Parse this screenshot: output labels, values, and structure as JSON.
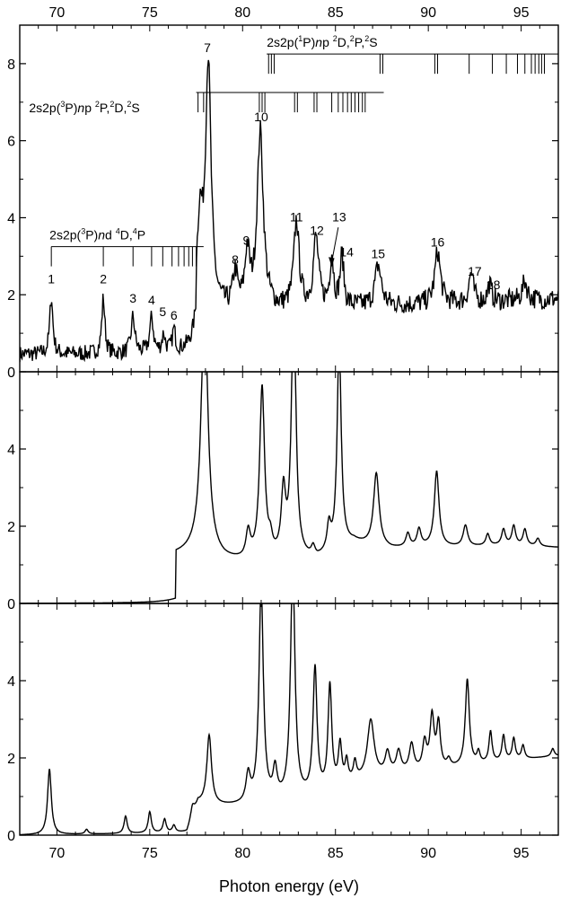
{
  "chart_data": {
    "type": "line",
    "xlabel": "Photon energy (eV)",
    "xlim": [
      68,
      97
    ],
    "x_ticks": [
      70,
      75,
      80,
      85,
      90,
      95
    ],
    "x_ticks_top": [
      70,
      75,
      80,
      85,
      90,
      95
    ],
    "panels": [
      {
        "id": "experiment",
        "ylim": [
          0,
          9
        ],
        "y_ticks": [
          0,
          2,
          4,
          6,
          8
        ],
        "peak_labels": [
          {
            "text": "1",
            "x": 69.7,
            "y": 2.3
          },
          {
            "text": "2",
            "x": 72.5,
            "y": 2.3
          },
          {
            "text": "3",
            "x": 74.1,
            "y": 1.8
          },
          {
            "text": "4",
            "x": 75.1,
            "y": 1.75
          },
          {
            "text": "5",
            "x": 75.7,
            "y": 1.45
          },
          {
            "text": "6",
            "x": 76.3,
            "y": 1.35
          },
          {
            "text": "7",
            "x": 78.1,
            "y": 8.3
          },
          {
            "text": "8",
            "x": 79.6,
            "y": 2.8
          },
          {
            "text": "9",
            "x": 80.2,
            "y": 3.3
          },
          {
            "text": "10",
            "x": 81.0,
            "y": 6.5
          },
          {
            "text": "11",
            "x": 82.9,
            "y": 3.9
          },
          {
            "text": "12",
            "x": 84.0,
            "y": 3.55
          },
          {
            "text": "13",
            "x": 85.2,
            "y": 3.9
          },
          {
            "text": "14",
            "x": 85.6,
            "y": 3.0
          },
          {
            "text": "15",
            "x": 87.3,
            "y": 2.95
          },
          {
            "text": "16",
            "x": 90.5,
            "y": 3.25
          },
          {
            "text": "17",
            "x": 92.5,
            "y": 2.5
          },
          {
            "text": "18",
            "x": 93.5,
            "y": 2.15
          }
        ],
        "series_3Pnd_4D4P": {
          "label": "2s2p(3P)nd 4D,4P",
          "baseline_y": 3.25,
          "x_start": 69.7,
          "x_end": 77.9,
          "positions": [
            69.7,
            72.5,
            74.1,
            75.1,
            75.7,
            76.2,
            76.55,
            76.85,
            77.1,
            77.3,
            77.5
          ]
        },
        "series_3Pnp_2P2D2S": {
          "label": "2s2p(3P)np 2P,2D,2S",
          "baseline_y": 7.25,
          "x_start": 77.5,
          "x_end": 87.6,
          "positions": [
            77.6,
            77.9,
            78.25,
            80.9,
            81.05,
            81.2,
            82.8,
            82.95,
            83.85,
            84.0,
            84.8,
            85.15,
            85.4,
            85.65,
            85.85,
            86.05,
            86.25,
            86.45,
            86.6
          ]
        },
        "series_1Pnp_2D2P2S": {
          "label": "2s2p(1P)np 2D,2P,2S",
          "baseline_y": 8.25,
          "x_start": 81.3,
          "x_end": 97,
          "positions": [
            81.4,
            81.55,
            81.7,
            87.4,
            87.55,
            90.35,
            90.5,
            92.2,
            93.45,
            94.2,
            94.8,
            95.2,
            95.55,
            95.75,
            95.95,
            96.1,
            96.25
          ]
        },
        "base_level": 0.45,
        "onset": 77.5,
        "noise_amp": 0.42,
        "peaks": [
          {
            "x": 69.7,
            "h": 1.5,
            "w": 0.1
          },
          {
            "x": 72.5,
            "h": 1.45,
            "w": 0.1
          },
          {
            "x": 74.1,
            "h": 0.95,
            "w": 0.12
          },
          {
            "x": 75.1,
            "h": 0.9,
            "w": 0.12
          },
          {
            "x": 75.75,
            "h": 0.45,
            "w": 0.1
          },
          {
            "x": 76.3,
            "h": 0.55,
            "w": 0.1
          },
          {
            "x": 77.7,
            "h": 2.2,
            "w": 0.18
          },
          {
            "x": 78.15,
            "h": 6.4,
            "w": 0.18
          },
          {
            "x": 79.6,
            "h": 0.9,
            "w": 0.15
          },
          {
            "x": 80.25,
            "h": 1.4,
            "w": 0.15
          },
          {
            "x": 80.95,
            "h": 4.6,
            "w": 0.2
          },
          {
            "x": 82.9,
            "h": 2.25,
            "w": 0.17
          },
          {
            "x": 83.95,
            "h": 1.8,
            "w": 0.17
          },
          {
            "x": 84.8,
            "h": 1.3,
            "w": 0.12
          },
          {
            "x": 85.35,
            "h": 1.3,
            "w": 0.12
          },
          {
            "x": 87.3,
            "h": 1.05,
            "w": 0.2
          },
          {
            "x": 90.5,
            "h": 1.35,
            "w": 0.18
          },
          {
            "x": 92.3,
            "h": 0.75,
            "w": 0.14
          },
          {
            "x": 93.3,
            "h": 0.45,
            "w": 0.12
          },
          {
            "x": 95.2,
            "h": 0.5,
            "w": 0.15
          }
        ]
      },
      {
        "id": "theory-convolved",
        "ylim": [
          0,
          6
        ],
        "y_ticks": [
          0,
          2,
          4
        ],
        "base_level": 0,
        "onset": 76.4,
        "background": [
          [
            68,
            0
          ],
          [
            76.38,
            0
          ],
          [
            76.42,
            1.25
          ],
          [
            77.5,
            1.3
          ],
          [
            79,
            1.1
          ],
          [
            80,
            1.05
          ],
          [
            84,
            1.1
          ],
          [
            86,
            1.55
          ],
          [
            87,
            1.45
          ],
          [
            88,
            1.4
          ],
          [
            90,
            1.45
          ],
          [
            92,
            1.45
          ],
          [
            94,
            1.5
          ],
          [
            97,
            1.45
          ]
        ],
        "peaks": [
          {
            "x": 77.95,
            "h": 6.5,
            "w": 0.22
          },
          {
            "x": 80.3,
            "h": 0.68,
            "w": 0.14
          },
          {
            "x": 81.05,
            "h": 4.45,
            "w": 0.16
          },
          {
            "x": 81.5,
            "h": 0.35,
            "w": 0.12
          },
          {
            "x": 82.2,
            "h": 1.65,
            "w": 0.14
          },
          {
            "x": 82.75,
            "h": 7.0,
            "w": 0.14
          },
          {
            "x": 83.8,
            "h": 0.25,
            "w": 0.12
          },
          {
            "x": 84.65,
            "h": 0.65,
            "w": 0.12
          },
          {
            "x": 85.2,
            "h": 5.4,
            "w": 0.13
          },
          {
            "x": 87.2,
            "h": 1.9,
            "w": 0.18
          },
          {
            "x": 88.9,
            "h": 0.35,
            "w": 0.13
          },
          {
            "x": 89.5,
            "h": 0.45,
            "w": 0.13
          },
          {
            "x": 90.45,
            "h": 1.95,
            "w": 0.15
          },
          {
            "x": 92.0,
            "h": 0.55,
            "w": 0.15
          },
          {
            "x": 93.2,
            "h": 0.3,
            "w": 0.12
          },
          {
            "x": 94.05,
            "h": 0.4,
            "w": 0.12
          },
          {
            "x": 94.6,
            "h": 0.5,
            "w": 0.12
          },
          {
            "x": 95.2,
            "h": 0.42,
            "w": 0.12
          },
          {
            "x": 95.9,
            "h": 0.2,
            "w": 0.12
          }
        ]
      },
      {
        "id": "theory-full",
        "ylim": [
          0,
          6
        ],
        "y_ticks": [
          0,
          2,
          4
        ],
        "base_level": 0,
        "background": [
          [
            68,
            0
          ],
          [
            77.0,
            0.05
          ],
          [
            77.6,
            0.8
          ],
          [
            78.5,
            0.75
          ],
          [
            80,
            0.75
          ],
          [
            84,
            0.95
          ],
          [
            86,
            1.35
          ],
          [
            88,
            1.55
          ],
          [
            90,
            1.65
          ],
          [
            92,
            1.75
          ],
          [
            94,
            1.9
          ],
          [
            97,
            2.05
          ]
        ],
        "peaks": [
          {
            "x": 69.6,
            "h": 1.7,
            "w": 0.12
          },
          {
            "x": 71.6,
            "h": 0.12,
            "w": 0.1
          },
          {
            "x": 73.7,
            "h": 0.45,
            "w": 0.1
          },
          {
            "x": 75.0,
            "h": 0.55,
            "w": 0.1
          },
          {
            "x": 75.8,
            "h": 0.35,
            "w": 0.1
          },
          {
            "x": 76.3,
            "h": 0.18,
            "w": 0.1
          },
          {
            "x": 77.3,
            "h": 0.3,
            "w": 0.12
          },
          {
            "x": 78.2,
            "h": 1.8,
            "w": 0.15
          },
          {
            "x": 80.3,
            "h": 0.72,
            "w": 0.14
          },
          {
            "x": 81.0,
            "h": 5.6,
            "w": 0.14
          },
          {
            "x": 81.75,
            "h": 0.75,
            "w": 0.13
          },
          {
            "x": 82.7,
            "h": 6.2,
            "w": 0.14
          },
          {
            "x": 83.9,
            "h": 3.3,
            "w": 0.13
          },
          {
            "x": 84.7,
            "h": 2.7,
            "w": 0.12
          },
          {
            "x": 85.25,
            "h": 1.05,
            "w": 0.11
          },
          {
            "x": 85.6,
            "h": 0.55,
            "w": 0.1
          },
          {
            "x": 86.05,
            "h": 0.45,
            "w": 0.1
          },
          {
            "x": 86.9,
            "h": 1.5,
            "w": 0.22
          },
          {
            "x": 87.8,
            "h": 0.55,
            "w": 0.15
          },
          {
            "x": 88.4,
            "h": 0.55,
            "w": 0.15
          },
          {
            "x": 89.1,
            "h": 0.7,
            "w": 0.15
          },
          {
            "x": 89.8,
            "h": 0.7,
            "w": 0.13
          },
          {
            "x": 90.2,
            "h": 1.35,
            "w": 0.13
          },
          {
            "x": 90.55,
            "h": 1.15,
            "w": 0.12
          },
          {
            "x": 91.1,
            "h": 0.2,
            "w": 0.12
          },
          {
            "x": 92.1,
            "h": 2.25,
            "w": 0.13
          },
          {
            "x": 92.7,
            "h": 0.3,
            "w": 0.1
          },
          {
            "x": 93.35,
            "h": 0.8,
            "w": 0.1
          },
          {
            "x": 94.05,
            "h": 0.65,
            "w": 0.1
          },
          {
            "x": 94.6,
            "h": 0.55,
            "w": 0.1
          },
          {
            "x": 95.1,
            "h": 0.35,
            "w": 0.1
          },
          {
            "x": 96.7,
            "h": 0.2,
            "w": 0.1
          }
        ]
      }
    ]
  }
}
